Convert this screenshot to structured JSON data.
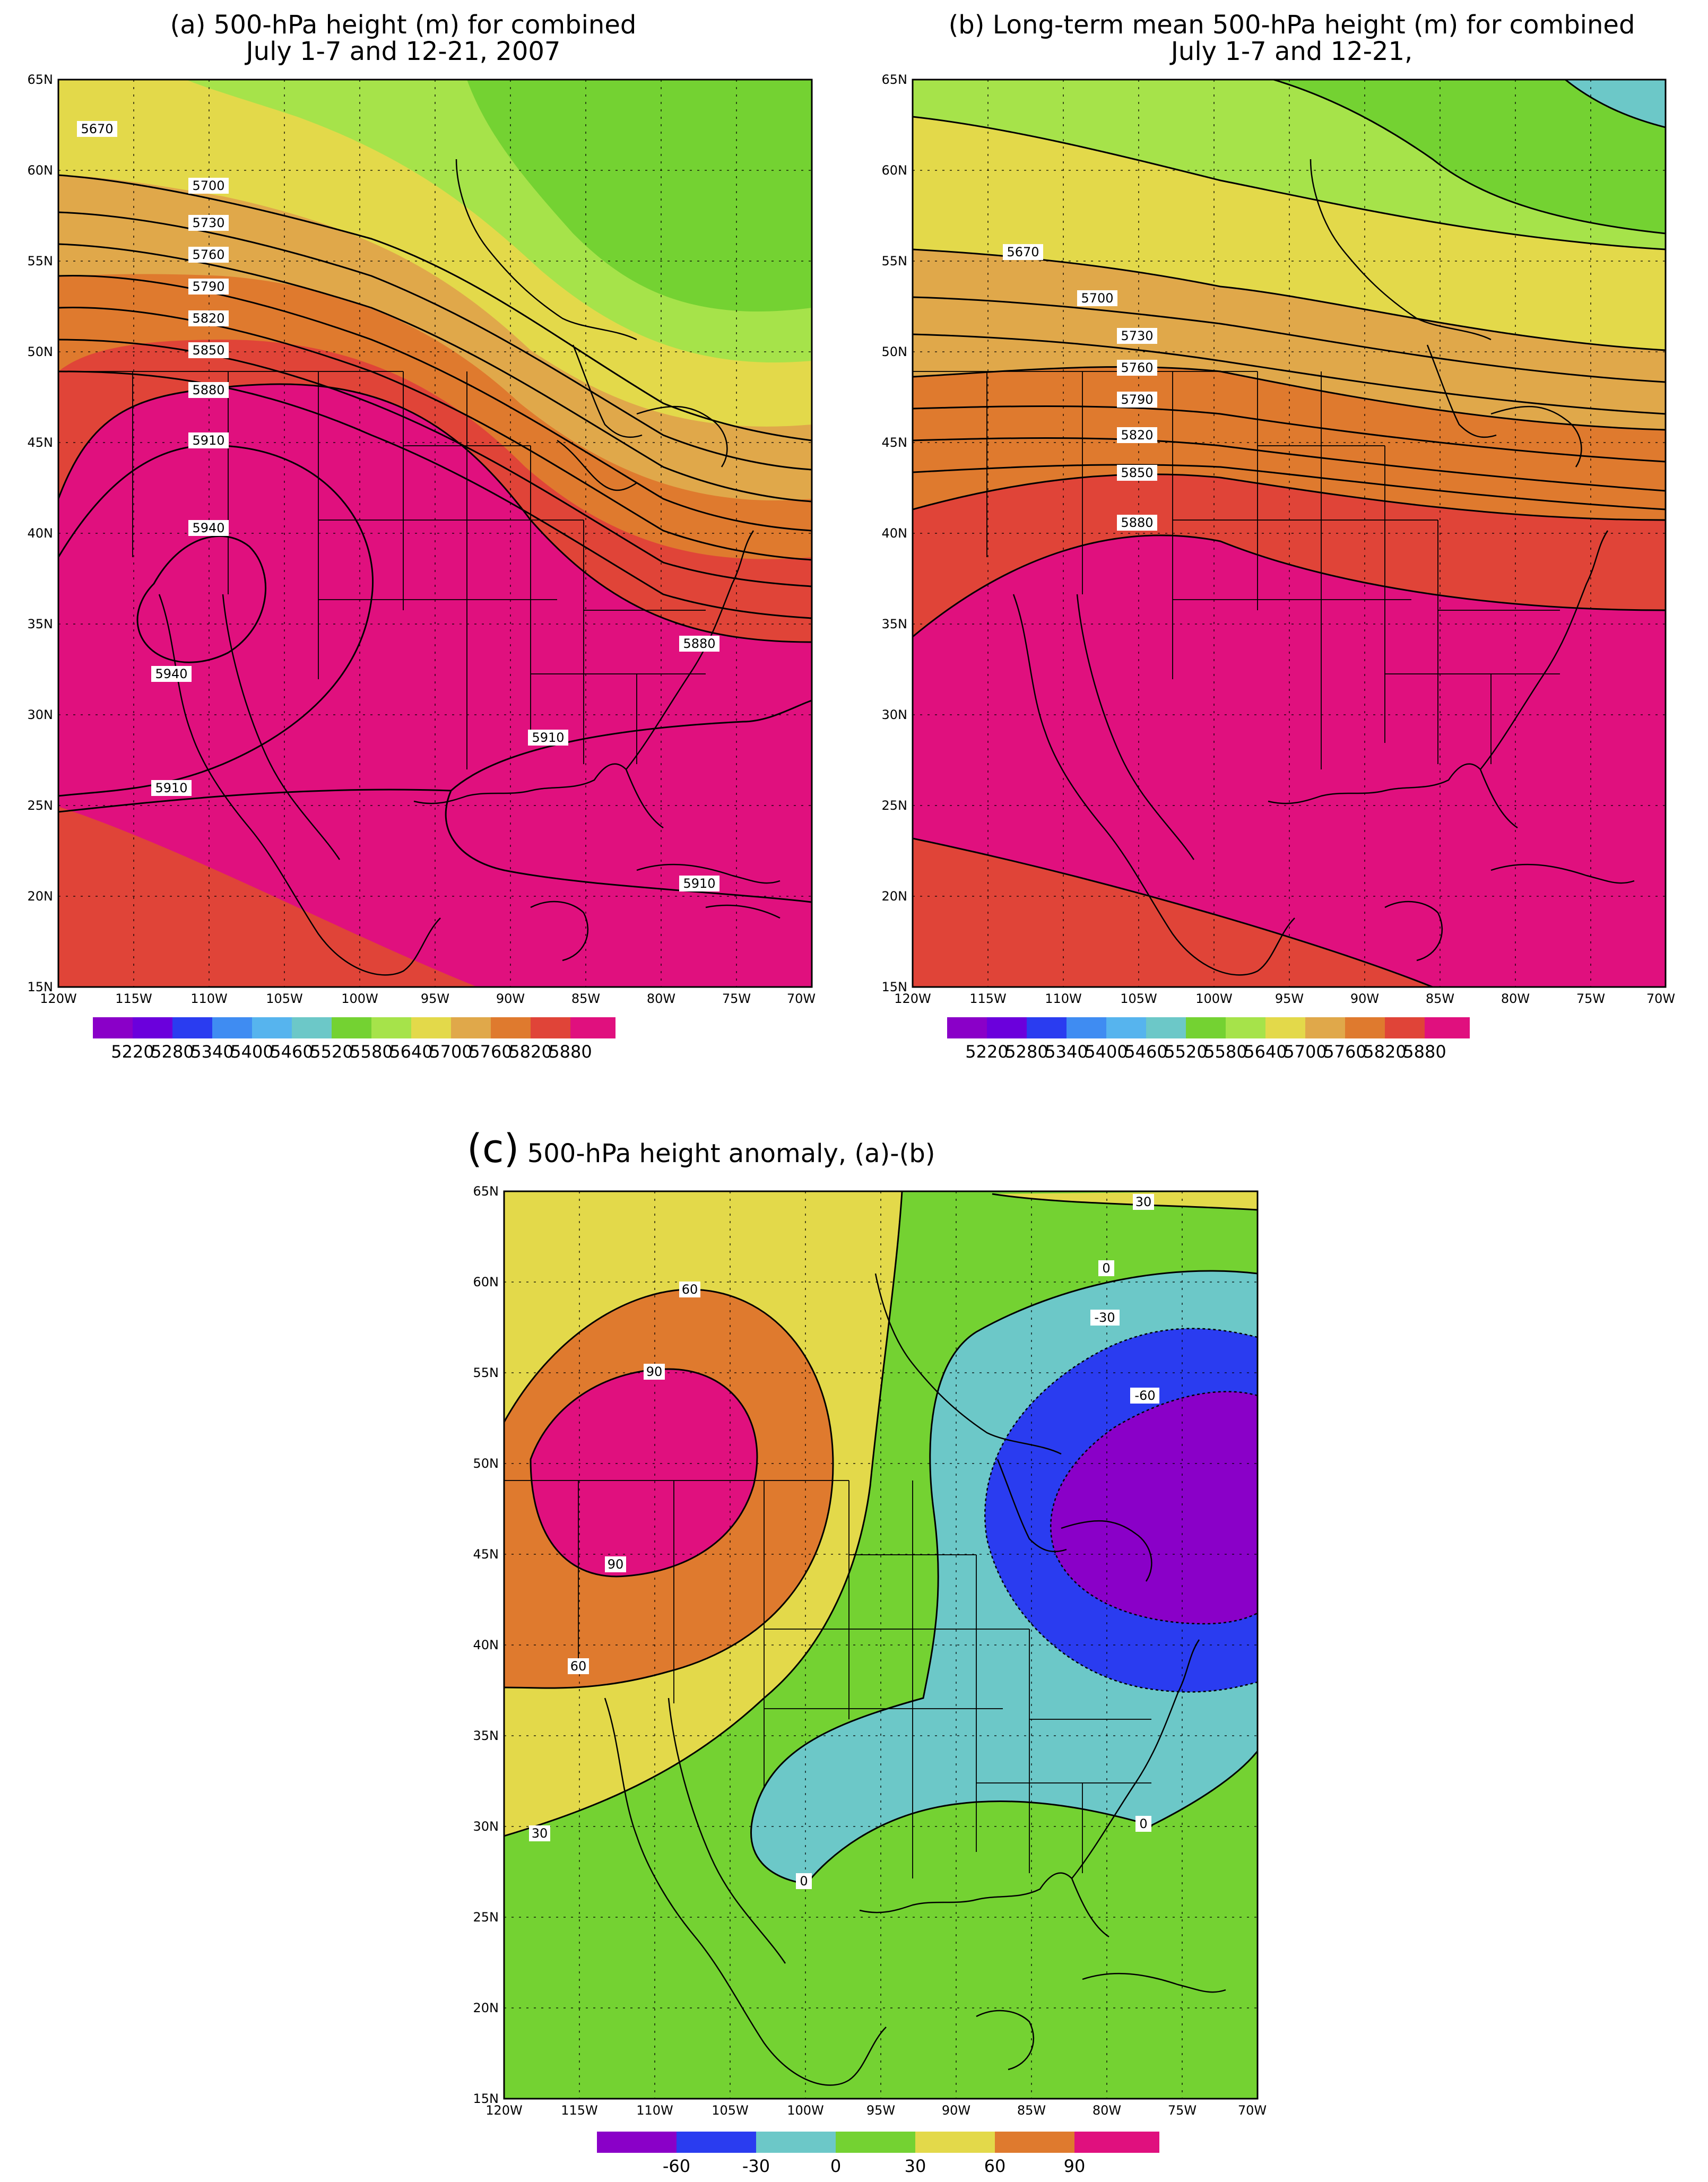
{
  "panels": {
    "a": {
      "title": "(a) 500-hPa height (m) for combined\nJuly 1-7 and 12-21, 2007",
      "contour_labels": [
        "5670",
        "5700",
        "5730",
        "5760",
        "5790",
        "5820",
        "5850",
        "5880",
        "5910",
        "5940",
        "5940",
        "5880",
        "5910",
        "5910",
        "5910"
      ],
      "colorbar_labels": [
        "5220",
        "5280",
        "5340",
        "5400",
        "5460",
        "5520",
        "5580",
        "5640",
        "5700",
        "5760",
        "5820",
        "5880"
      ]
    },
    "b": {
      "title": "(b) Long-term mean 500-hPa height (m) for combined\nJuly 1-7 and 12-21,",
      "contour_labels": [
        "5670",
        "5700",
        "5730",
        "5760",
        "5790",
        "5820",
        "5850",
        "5880"
      ],
      "colorbar_labels": [
        "5220",
        "5280",
        "5340",
        "5400",
        "5460",
        "5520",
        "5580",
        "5640",
        "5700",
        "5760",
        "5820",
        "5880"
      ]
    },
    "c": {
      "title_letter": "(c)",
      "title_text": " 500-hPa height anomaly, (a)-(b)",
      "contour_labels": [
        "30",
        "0",
        "-30",
        "-60",
        "60",
        "90",
        "90",
        "60",
        "30",
        "0",
        "0"
      ],
      "colorbar_labels": [
        "-60",
        "-30",
        "0",
        "30",
        "60",
        "90"
      ]
    }
  },
  "axes": {
    "lat_ticks": [
      "65N",
      "60N",
      "55N",
      "50N",
      "45N",
      "40N",
      "35N",
      "30N",
      "25N",
      "20N",
      "15N"
    ],
    "lon_ticks": [
      "120W",
      "115W",
      "110W",
      "105W",
      "100W",
      "95W",
      "90W",
      "85W",
      "80W",
      "75W",
      "70W"
    ]
  },
  "colors": {
    "heights": [
      "#8a00c8",
      "#6b00dc",
      "#2a3cf0",
      "#3f8cf2",
      "#56b4ee",
      "#6cc8c8",
      "#74d232",
      "#a6e34a",
      "#e3d94a",
      "#e0a84a",
      "#df7a2e",
      "#e04438",
      "#e0107e"
    ],
    "anomaly": [
      "#8a00c8",
      "#2a3cf0",
      "#6cc8c8",
      "#74d232",
      "#e3d94a",
      "#df7a2e",
      "#e0107e"
    ]
  }
}
